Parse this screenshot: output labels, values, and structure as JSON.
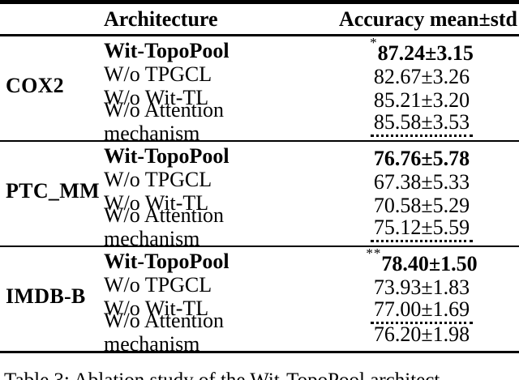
{
  "header": {
    "architecture": "Architecture",
    "accuracy": "Accuracy mean±std"
  },
  "groups": [
    {
      "dataset": "COX2",
      "rows": [
        {
          "architecture": "Wit-TopoPool",
          "stars": "*",
          "accuracy": "87.24±3.15",
          "bold": true,
          "dotted": false
        },
        {
          "architecture": "W/o TPGCL",
          "stars": "",
          "accuracy": "82.67±3.26",
          "bold": false,
          "dotted": false
        },
        {
          "architecture": "W/o Wit-TL",
          "stars": "",
          "accuracy": "85.21±3.20",
          "bold": false,
          "dotted": false
        },
        {
          "architecture": "W/o Attention mechanism",
          "stars": "",
          "accuracy": "85.58±3.53",
          "bold": false,
          "dotted": true
        }
      ]
    },
    {
      "dataset": "PTC_MM",
      "rows": [
        {
          "architecture": "Wit-TopoPool",
          "stars": "",
          "accuracy": "76.76±5.78",
          "bold": true,
          "dotted": false
        },
        {
          "architecture": "W/o TPGCL",
          "stars": "",
          "accuracy": "67.38±5.33",
          "bold": false,
          "dotted": false
        },
        {
          "architecture": "W/o Wit-TL",
          "stars": "",
          "accuracy": "70.58±5.29",
          "bold": false,
          "dotted": false
        },
        {
          "architecture": "W/o Attention mechanism",
          "stars": "",
          "accuracy": "75.12±5.59",
          "bold": false,
          "dotted": true
        }
      ]
    },
    {
      "dataset": "IMDB-B",
      "rows": [
        {
          "architecture": "Wit-TopoPool",
          "stars": "**",
          "accuracy": "78.40±1.50",
          "bold": true,
          "dotted": false
        },
        {
          "architecture": "W/o TPGCL",
          "stars": "",
          "accuracy": "73.93±1.83",
          "bold": false,
          "dotted": false
        },
        {
          "architecture": "W/o Wit-TL",
          "stars": "",
          "accuracy": "77.00±1.69",
          "bold": false,
          "dotted": true
        },
        {
          "architecture": "W/o Attention mechanism",
          "stars": "",
          "accuracy": "76.20±1.98",
          "bold": false,
          "dotted": false
        }
      ]
    }
  ],
  "caption": "Table 3: Ablation study of the Wit-TopoPool architect",
  "colors": {
    "text": "#000000",
    "background": "#ffffff",
    "rule": "#000000"
  }
}
